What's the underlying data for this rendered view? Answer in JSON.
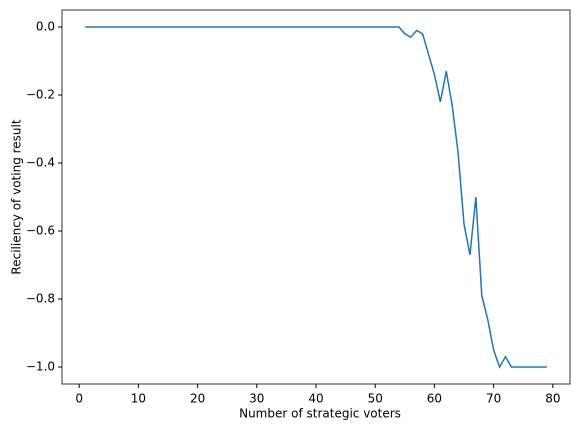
{
  "chart_data": {
    "type": "line",
    "xlabel": "Number of strategic voters",
    "ylabel": "Reciliency of voting result",
    "x": [
      1,
      2,
      3,
      4,
      5,
      6,
      7,
      8,
      9,
      10,
      11,
      12,
      13,
      14,
      15,
      16,
      17,
      18,
      19,
      20,
      21,
      22,
      23,
      24,
      25,
      26,
      27,
      28,
      29,
      30,
      31,
      32,
      33,
      34,
      35,
      36,
      37,
      38,
      39,
      40,
      41,
      42,
      43,
      44,
      45,
      46,
      47,
      48,
      49,
      50,
      51,
      52,
      53,
      54,
      55,
      56,
      57,
      58,
      59,
      60,
      61,
      62,
      63,
      64,
      65,
      66,
      67,
      68,
      69,
      70,
      71,
      72,
      73,
      74,
      75,
      76,
      77,
      78,
      79
    ],
    "series": [
      {
        "color": "#1f77b4",
        "values": [
          0,
          0,
          0,
          0,
          0,
          0,
          0,
          0,
          0,
          0,
          0,
          0,
          0,
          0,
          0,
          0,
          0,
          0,
          0,
          0,
          0,
          0,
          0,
          0,
          0,
          0,
          0,
          0,
          0,
          0,
          0,
          0,
          0,
          0,
          0,
          0,
          0,
          0,
          0,
          0,
          0,
          0,
          0,
          0,
          0,
          0,
          0,
          0,
          0,
          0,
          0,
          0,
          0,
          0,
          -0.02,
          -0.03,
          -0.01,
          -0.02,
          -0.08,
          -0.14,
          -0.22,
          -0.13,
          -0.23,
          -0.37,
          -0.58,
          -0.67,
          -0.5,
          -0.79,
          -0.86,
          -0.95,
          -1.0,
          -0.97,
          -1.0,
          -1.0,
          -1.0,
          -1.0,
          -1.0,
          -1.0,
          -1.0
        ]
      }
    ],
    "xlim": [
      -2.9,
      82.9
    ],
    "ylim": [
      -1.05,
      0.05
    ],
    "xticks": [
      0,
      10,
      20,
      30,
      40,
      50,
      60,
      70,
      80
    ],
    "yticks": [
      {
        "value": -1.0,
        "label": "−1.0"
      },
      {
        "value": -0.8,
        "label": "−0.8"
      },
      {
        "value": -0.6,
        "label": "−0.6"
      },
      {
        "value": -0.4,
        "label": "−0.4"
      },
      {
        "value": -0.2,
        "label": "−0.2"
      },
      {
        "value": 0.0,
        "label": "0.0"
      }
    ]
  }
}
